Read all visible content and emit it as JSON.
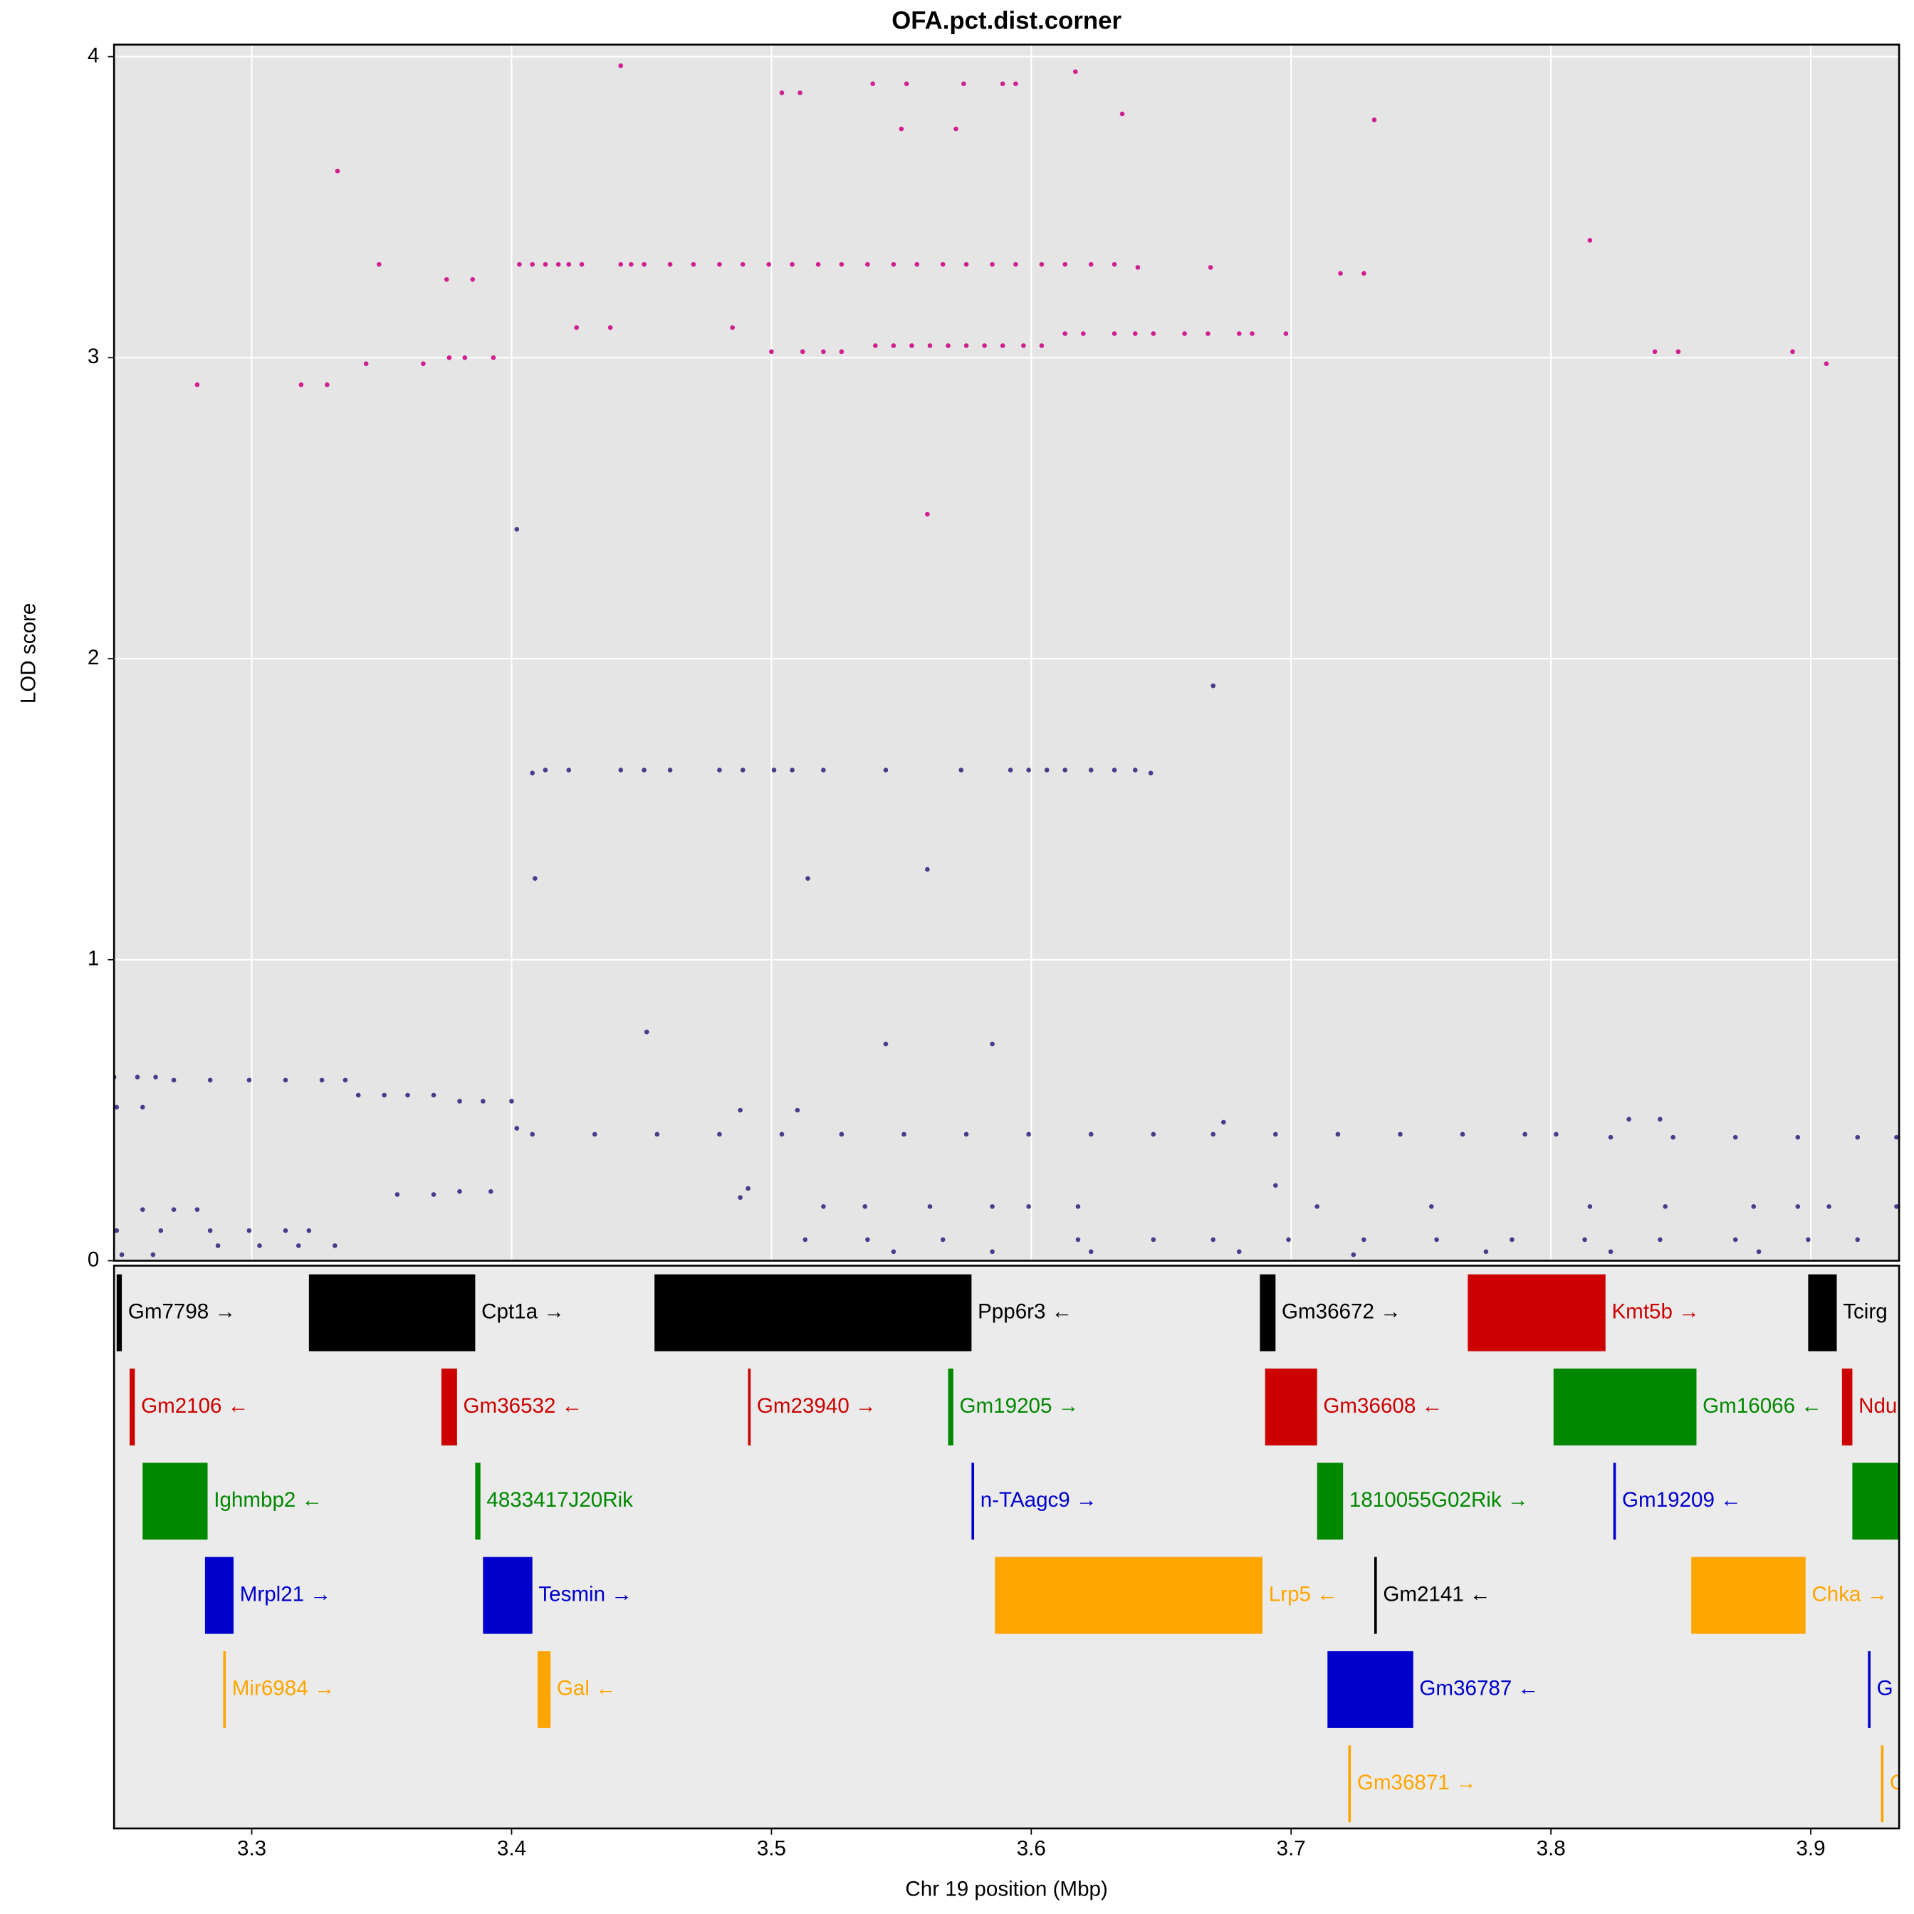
{
  "chart_data": {
    "type": "scatter",
    "title": "OFA.pct.dist.corner",
    "xlabel": "Chr 19 position (Mbp)",
    "ylabel": "LOD score",
    "xlim": [
      3.247,
      3.934
    ],
    "ylim": [
      0,
      4.04
    ],
    "xticks": [
      3.3,
      3.4,
      3.5,
      3.6,
      3.7,
      3.8,
      3.9
    ],
    "yticks": [
      0,
      1,
      2,
      3,
      4
    ],
    "grid": true,
    "series": [
      {
        "color": "#d0208f",
        "x": [
          3.279,
          3.319,
          3.329,
          3.333,
          3.349,
          3.344,
          3.366,
          3.375,
          3.385,
          3.376,
          3.382,
          3.393,
          3.442,
          3.425,
          3.438,
          3.485,
          3.504,
          3.511,
          3.539,
          3.552,
          3.574,
          3.589,
          3.594,
          3.617,
          3.635,
          3.55,
          3.571,
          3.56,
          3.732,
          3.669,
          3.719,
          3.728,
          3.815,
          3.84,
          3.849,
          3.893,
          3.906,
          3.403,
          3.408,
          3.413,
          3.418,
          3.422,
          3.427,
          3.442,
          3.446,
          3.451,
          3.461,
          3.47,
          3.48,
          3.489,
          3.499,
          3.508,
          3.518,
          3.527,
          3.537,
          3.547,
          3.556,
          3.566,
          3.575,
          3.585,
          3.594,
          3.604,
          3.613,
          3.623,
          3.632,
          3.641,
          3.54,
          3.547,
          3.554,
          3.561,
          3.568,
          3.575,
          3.582,
          3.589,
          3.597,
          3.604,
          3.5,
          3.512,
          3.52,
          3.527,
          3.613,
          3.62,
          3.632,
          3.64,
          3.647,
          3.659,
          3.668,
          3.68,
          3.685,
          3.698
        ],
        "values": [
          2.91,
          2.91,
          2.91,
          3.62,
          3.31,
          2.98,
          2.98,
          3.26,
          3.26,
          3.0,
          3.0,
          3.0,
          3.97,
          3.1,
          3.1,
          3.1,
          3.88,
          3.88,
          3.91,
          3.91,
          3.91,
          3.91,
          3.91,
          3.95,
          3.81,
          3.76,
          3.76,
          2.48,
          3.79,
          3.3,
          3.28,
          3.28,
          3.39,
          3.02,
          3.02,
          3.02,
          2.98,
          3.31,
          3.31,
          3.31,
          3.31,
          3.31,
          3.31,
          3.31,
          3.31,
          3.31,
          3.31,
          3.31,
          3.31,
          3.31,
          3.31,
          3.31,
          3.31,
          3.31,
          3.31,
          3.31,
          3.31,
          3.31,
          3.31,
          3.31,
          3.31,
          3.31,
          3.31,
          3.31,
          3.31,
          3.3,
          3.04,
          3.04,
          3.04,
          3.04,
          3.04,
          3.04,
          3.04,
          3.04,
          3.04,
          3.04,
          3.02,
          3.02,
          3.02,
          3.02,
          3.08,
          3.08,
          3.08,
          3.08,
          3.08,
          3.08,
          3.08,
          3.08,
          3.08,
          3.08
        ]
      },
      {
        "color": "#483d8b",
        "x": [
          3.402,
          3.409,
          3.514,
          3.56,
          3.67,
          3.452,
          3.544,
          3.585,
          3.488,
          3.51,
          3.674,
          3.408,
          3.413,
          3.422,
          3.442,
          3.451,
          3.461,
          3.48,
          3.489,
          3.501,
          3.508,
          3.52,
          3.544,
          3.573,
          3.592,
          3.599,
          3.606,
          3.613,
          3.623,
          3.632,
          3.64,
          3.646,
          3.247,
          3.256,
          3.263,
          3.27,
          3.284,
          3.299,
          3.313,
          3.327,
          3.336,
          3.341,
          3.351,
          3.36,
          3.37,
          3.38,
          3.389,
          3.4,
          3.402,
          3.408,
          3.432,
          3.456,
          3.48,
          3.504,
          3.527,
          3.551,
          3.575,
          3.599,
          3.623,
          3.647,
          3.67,
          3.694,
          3.718,
          3.742,
          3.766,
          3.79,
          3.802,
          3.823,
          3.847,
          3.871,
          3.895,
          3.918,
          3.933,
          3.83,
          3.842,
          3.248,
          3.258,
          3.258,
          3.27,
          3.279,
          3.248,
          3.265,
          3.284,
          3.299,
          3.313,
          3.322,
          3.287,
          3.303,
          3.318,
          3.332,
          3.356,
          3.37,
          3.38,
          3.392,
          3.513,
          3.537,
          3.566,
          3.618,
          3.647,
          3.67,
          3.699,
          3.728,
          3.756,
          3.785,
          3.813,
          3.842,
          3.871,
          3.899,
          3.918,
          3.547,
          3.585,
          3.623,
          3.68,
          3.724,
          3.775,
          3.823,
          3.88,
          3.52,
          3.536,
          3.561,
          3.585,
          3.599,
          3.618,
          3.71,
          3.754,
          3.815,
          3.844,
          3.878,
          3.895,
          3.907,
          3.933,
          3.694,
          3.488,
          3.491,
          3.25,
          3.262
        ],
        "values": [
          2.43,
          1.27,
          1.27,
          1.3,
          1.91,
          0.76,
          0.72,
          0.72,
          0.5,
          0.5,
          0.46,
          1.62,
          1.63,
          1.63,
          1.63,
          1.63,
          1.63,
          1.63,
          1.63,
          1.63,
          1.63,
          1.63,
          1.63,
          1.63,
          1.63,
          1.63,
          1.63,
          1.63,
          1.63,
          1.63,
          1.63,
          1.62,
          0.61,
          0.61,
          0.61,
          0.6,
          0.6,
          0.6,
          0.6,
          0.6,
          0.6,
          0.55,
          0.55,
          0.55,
          0.55,
          0.53,
          0.53,
          0.53,
          0.44,
          0.42,
          0.42,
          0.42,
          0.42,
          0.42,
          0.42,
          0.42,
          0.42,
          0.42,
          0.42,
          0.42,
          0.42,
          0.42,
          0.42,
          0.42,
          0.42,
          0.42,
          0.42,
          0.41,
          0.41,
          0.41,
          0.41,
          0.41,
          0.41,
          0.47,
          0.47,
          0.51,
          0.51,
          0.17,
          0.17,
          0.17,
          0.1,
          0.1,
          0.1,
          0.1,
          0.1,
          0.1,
          0.05,
          0.05,
          0.05,
          0.05,
          0.22,
          0.22,
          0.23,
          0.23,
          0.07,
          0.07,
          0.07,
          0.07,
          0.07,
          0.07,
          0.07,
          0.07,
          0.07,
          0.07,
          0.07,
          0.07,
          0.07,
          0.07,
          0.07,
          0.03,
          0.03,
          0.03,
          0.03,
          0.02,
          0.03,
          0.03,
          0.03,
          0.18,
          0.18,
          0.18,
          0.18,
          0.18,
          0.18,
          0.18,
          0.18,
          0.18,
          0.18,
          0.18,
          0.18,
          0.18,
          0.18,
          0.25,
          0.21,
          0.24,
          0.02,
          0.02
        ]
      }
    ],
    "gene_rows": [
      [
        {
          "label": "Gm7798 →",
          "start": 3.248,
          "end": 3.25,
          "color": "#000000"
        },
        {
          "label": "Cpt1a →",
          "start": 3.322,
          "end": 3.386,
          "color": "#000000"
        },
        {
          "label": "Ppp6r3 ←",
          "start": 3.455,
          "end": 3.577,
          "color": "#000000"
        },
        {
          "label": "Gm36672 →",
          "start": 3.688,
          "end": 3.694,
          "color": "#000000"
        },
        {
          "label": "Kmt5b →",
          "start": 3.768,
          "end": 3.821,
          "color": "#cc0000"
        },
        {
          "label": "Tcirg",
          "start": 3.899,
          "end": 3.91,
          "color": "#000000"
        }
      ],
      [
        {
          "label": "Gm2106 ←",
          "start": 3.253,
          "end": 3.255,
          "color": "#cc0000"
        },
        {
          "label": "Gm36532 ←",
          "start": 3.373,
          "end": 3.379,
          "color": "#cc0000"
        },
        {
          "label": "Gm23940 →",
          "start": 3.491,
          "end": 3.492,
          "color": "#cc0000"
        },
        {
          "label": "Gm19205 →",
          "start": 3.568,
          "end": 3.57,
          "color": "#008800"
        },
        {
          "label": "Gm36608 ←",
          "start": 3.69,
          "end": 3.71,
          "color": "#cc0000"
        },
        {
          "label": "Gm16066 ←",
          "start": 3.801,
          "end": 3.856,
          "color": "#008800"
        },
        {
          "label": "Ndu",
          "start": 3.912,
          "end": 3.916,
          "color": "#cc0000"
        }
      ],
      [
        {
          "label": "Ighmbp2 ←",
          "start": 3.258,
          "end": 3.283,
          "color": "#008800"
        },
        {
          "label": "4833417J20Rik",
          "start": 3.386,
          "end": 3.388,
          "color": "#008800"
        },
        {
          "label": "n-TAagc9 →",
          "start": 3.577,
          "end": 3.578,
          "color": "#0000cc"
        },
        {
          "label": "1810055G02Rik →",
          "start": 3.71,
          "end": 3.72,
          "color": "#008800"
        },
        {
          "label": "Gm19209 ←",
          "start": 3.824,
          "end": 3.825,
          "color": "#0000cc"
        },
        {
          "label": null,
          "start": 3.916,
          "end": 3.94,
          "color": "#008800"
        }
      ],
      [
        {
          "label": "Mrpl21 →",
          "start": 3.282,
          "end": 3.293,
          "color": "#0000cc"
        },
        {
          "label": "Tesmin →",
          "start": 3.389,
          "end": 3.408,
          "color": "#0000cc"
        },
        {
          "label": "Lrp5 ←",
          "start": 3.586,
          "end": 3.689,
          "color": "#ffa500"
        },
        {
          "label": "Gm2141 ←",
          "start": 3.732,
          "end": 3.733,
          "color": "#000000"
        },
        {
          "label": "Chka →",
          "start": 3.854,
          "end": 3.898,
          "color": "#ffa500"
        }
      ],
      [
        {
          "label": "Mir6984 →",
          "start": 3.289,
          "end": 3.29,
          "color": "#ffa500"
        },
        {
          "label": "Gal ←",
          "start": 3.41,
          "end": 3.415,
          "color": "#ffa500"
        },
        {
          "label": "Gm36787 ←",
          "start": 3.714,
          "end": 3.747,
          "color": "#0000cc"
        },
        {
          "label": "G",
          "start": 3.922,
          "end": 3.923,
          "color": "#0000cc"
        }
      ],
      [
        {
          "label": "Gm36871 →",
          "start": 3.722,
          "end": 3.723,
          "color": "#ffa500"
        },
        {
          "label": "C",
          "start": 3.927,
          "end": 3.928,
          "color": "#ffa500"
        }
      ]
    ]
  }
}
